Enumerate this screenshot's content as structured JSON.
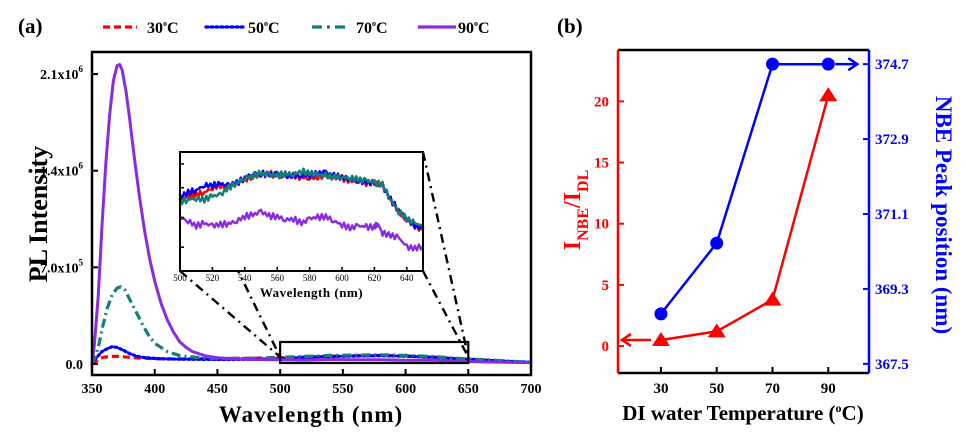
{
  "chart_data": [
    {
      "panel_label": "(a)",
      "type": "line",
      "title": "",
      "xlabel": "Wavelength (nm)",
      "ylabel": "PL Intensity",
      "xlim": [
        350,
        700
      ],
      "ylim": [
        -80000,
        2260000
      ],
      "xticks": [
        350,
        400,
        450,
        500,
        550,
        600,
        650,
        700
      ],
      "xtick_labels": [
        "350",
        "400",
        "450",
        "500",
        "550",
        "600",
        "650",
        "700"
      ],
      "yticks": [
        0,
        700000,
        1400000,
        2100000
      ],
      "ytick_labels": [
        {
          "base": "0.0",
          "exp": ""
        },
        {
          "base": "7.0x10",
          "exp": "5"
        },
        {
          "base": "1.4x10",
          "exp": "6"
        },
        {
          "base": "2.1x10",
          "exp": "6"
        }
      ],
      "grid": false,
      "legend_position": "top",
      "series": [
        {
          "name": "30°C",
          "label_base": "30",
          "label_unit": "C",
          "color": "#ff0000",
          "style": "dashed",
          "x": [
            350,
            353,
            356,
            360,
            365,
            370,
            375,
            380,
            390,
            400,
            420,
            440,
            460,
            480,
            500,
            520,
            540,
            560,
            580,
            600,
            620,
            640,
            660,
            680,
            700
          ],
          "y": [
            0,
            15000,
            40000,
            50000,
            55000,
            55000,
            52000,
            48000,
            42000,
            38000,
            36000,
            38000,
            40000,
            42000,
            45000,
            50000,
            55000,
            60000,
            62000,
            58000,
            52000,
            38000,
            28000,
            18000,
            10000
          ]
        },
        {
          "name": "50°C",
          "label_base": "50",
          "label_unit": "C",
          "color": "#0000ff",
          "style": "dotted",
          "x": [
            350,
            352,
            355,
            358,
            362,
            366,
            370,
            375,
            380,
            385,
            390,
            400,
            410,
            420,
            440,
            460,
            480,
            500,
            520,
            540,
            560,
            580,
            600,
            620,
            640,
            660,
            680,
            700
          ],
          "y": [
            0,
            30000,
            60000,
            90000,
            110000,
            125000,
            120000,
            100000,
            75000,
            58000,
            48000,
            40000,
            36000,
            35000,
            33000,
            32000,
            34000,
            40000,
            48000,
            55000,
            58000,
            60000,
            56000,
            50000,
            38000,
            30000,
            20000,
            12000
          ]
        },
        {
          "name": "70°C",
          "label_base": "70",
          "label_unit": "C",
          "color": "#138077",
          "style": "dashdot",
          "x": [
            350,
            352,
            355,
            358,
            362,
            366,
            370,
            373,
            376,
            380,
            385,
            390,
            395,
            400,
            410,
            420,
            440,
            460,
            480,
            500,
            520,
            540,
            560,
            580,
            600,
            620,
            640,
            660,
            680,
            700
          ],
          "y": [
            0,
            40000,
            120000,
            250000,
            400000,
            500000,
            550000,
            560000,
            540000,
            470000,
            380000,
            290000,
            210000,
            150000,
            90000,
            60000,
            42000,
            40000,
            42000,
            48000,
            55000,
            62000,
            65000,
            66000,
            62000,
            55000,
            42000,
            32000,
            22000,
            12000
          ]
        },
        {
          "name": "90°C",
          "label_base": "90",
          "label_unit": "C",
          "color": "#8a2be2",
          "style": "solid",
          "x": [
            350,
            352,
            355,
            358,
            361,
            364,
            367,
            370,
            372,
            374,
            377,
            380,
            384,
            388,
            392,
            396,
            400,
            405,
            410,
            415,
            420,
            425,
            430,
            440,
            450,
            460,
            480,
            500,
            520,
            540,
            560,
            580,
            600,
            620,
            640,
            660,
            680,
            700
          ],
          "y": [
            0,
            150000,
            500000,
            1000000,
            1450000,
            1800000,
            2050000,
            2160000,
            2170000,
            2130000,
            1980000,
            1780000,
            1480000,
            1200000,
            960000,
            760000,
            600000,
            440000,
            320000,
            230000,
            160000,
            120000,
            90000,
            60000,
            45000,
            38000,
            32000,
            30000,
            28000,
            32000,
            30000,
            31000,
            27000,
            28000,
            20000,
            15000,
            12000,
            10000
          ]
        }
      ],
      "zoom_box": {
        "x_range": [
          500,
          650
        ],
        "y_range": [
          -10000,
          150000
        ]
      },
      "inset": {
        "xlabel": "Wavelength (nm)",
        "xlim": [
          500,
          650
        ],
        "xticks": [
          500,
          520,
          540,
          560,
          580,
          600,
          620,
          640
        ],
        "xtick_labels": [
          "500",
          "520",
          "540",
          "560",
          "580",
          "600",
          "620",
          "640"
        ],
        "ylim": [
          0,
          1
        ],
        "yticks": [
          0.2,
          0.45,
          0.7,
          0.9
        ],
        "series": [
          {
            "name": "30°C",
            "x": [
              500,
              505,
              510,
              515,
              520,
              525,
              530,
              535,
              540,
              545,
              550,
              555,
              560,
              565,
              570,
              575,
              580,
              585,
              590,
              595,
              600,
              605,
              610,
              615,
              620,
              625,
              630,
              635,
              640,
              645,
              650
            ],
            "y": [
              0.6,
              0.62,
              0.64,
              0.66,
              0.7,
              0.72,
              0.7,
              0.74,
              0.77,
              0.8,
              0.81,
              0.82,
              0.8,
              0.79,
              0.8,
              0.79,
              0.78,
              0.79,
              0.81,
              0.78,
              0.78,
              0.76,
              0.76,
              0.74,
              0.74,
              0.72,
              0.6,
              0.5,
              0.43,
              0.38,
              0.34
            ]
          },
          {
            "name": "50°C",
            "x": [
              500,
              505,
              510,
              515,
              520,
              525,
              530,
              535,
              540,
              545,
              550,
              555,
              560,
              565,
              570,
              575,
              580,
              585,
              590,
              595,
              600,
              605,
              610,
              615,
              620,
              625,
              630,
              635,
              640,
              645,
              650
            ],
            "y": [
              0.62,
              0.66,
              0.68,
              0.72,
              0.72,
              0.73,
              0.72,
              0.74,
              0.78,
              0.82,
              0.82,
              0.81,
              0.82,
              0.81,
              0.8,
              0.8,
              0.81,
              0.82,
              0.83,
              0.8,
              0.79,
              0.77,
              0.76,
              0.75,
              0.73,
              0.72,
              0.6,
              0.52,
              0.44,
              0.38,
              0.36
            ]
          },
          {
            "name": "70°C",
            "x": [
              500,
              505,
              510,
              515,
              520,
              525,
              530,
              535,
              540,
              545,
              550,
              555,
              560,
              565,
              570,
              575,
              580,
              585,
              590,
              595,
              600,
              605,
              610,
              615,
              620,
              625,
              630,
              635,
              640,
              645,
              650
            ],
            "y": [
              0.58,
              0.6,
              0.61,
              0.6,
              0.63,
              0.64,
              0.7,
              0.74,
              0.78,
              0.8,
              0.82,
              0.81,
              0.8,
              0.82,
              0.81,
              0.84,
              0.82,
              0.81,
              0.8,
              0.79,
              0.79,
              0.78,
              0.77,
              0.76,
              0.74,
              0.73,
              0.6,
              0.5,
              0.44,
              0.4,
              0.38
            ]
          },
          {
            "name": "90°C",
            "x": [
              500,
              505,
              510,
              515,
              520,
              525,
              530,
              535,
              540,
              545,
              550,
              555,
              560,
              565,
              570,
              575,
              580,
              585,
              590,
              595,
              600,
              605,
              610,
              615,
              620,
              622,
              625,
              630,
              635,
              640,
              645,
              650
            ],
            "y": [
              0.45,
              0.42,
              0.38,
              0.4,
              0.38,
              0.39,
              0.4,
              0.42,
              0.46,
              0.47,
              0.5,
              0.46,
              0.46,
              0.43,
              0.44,
              0.4,
              0.44,
              0.45,
              0.46,
              0.42,
              0.39,
              0.36,
              0.38,
              0.37,
              0.37,
              0.4,
              0.32,
              0.3,
              0.28,
              0.2,
              0.19,
              0.21
            ]
          }
        ]
      }
    },
    {
      "panel_label": "(b)",
      "type": "line",
      "title": "",
      "xlabel": "DI water Temperature (°C)",
      "xlabel_base": "DI water Temperature (",
      "xlabel_deg": "o",
      "xlabel_end": "C)",
      "xlim": [
        14.6,
        104.6
      ],
      "xticks": [
        30,
        50,
        70,
        90
      ],
      "xtick_labels": [
        "30",
        "50",
        "70",
        "90"
      ],
      "categories": [
        30,
        50,
        70,
        90
      ],
      "grid": false,
      "left_axis": {
        "label_main": "I",
        "label_sub1": "NBE",
        "label_sep": "/I",
        "label_sub2": "DL",
        "color": "#ff0000",
        "ylim": [
          -2.2,
          24.2
        ],
        "yticks": [
          0,
          5,
          10,
          15,
          20
        ],
        "ytick_labels": [
          "0",
          "5",
          "10",
          "15",
          "20"
        ]
      },
      "right_axis": {
        "label": "NBE Peak position (nm)",
        "color": "#0000ff",
        "ylim": [
          367.28,
          375.04
        ],
        "yticks": [
          367.5,
          369.3,
          371.1,
          372.9,
          374.7
        ],
        "ytick_labels": [
          "367.5",
          "369.3",
          "371.1",
          "372.9",
          "374.7"
        ]
      },
      "series": [
        {
          "name": "I_NBE/I_DL",
          "axis": "left",
          "marker": "triangle",
          "color": "#ff0000",
          "values": [
            0.5,
            1.2,
            3.8,
            20.5
          ],
          "arrow": "left"
        },
        {
          "name": "NBE Peak position",
          "axis": "right",
          "marker": "circle",
          "color": "#0000ff",
          "values": [
            368.7,
            370.4,
            374.7,
            374.7
          ],
          "arrow": "right"
        }
      ]
    }
  ]
}
